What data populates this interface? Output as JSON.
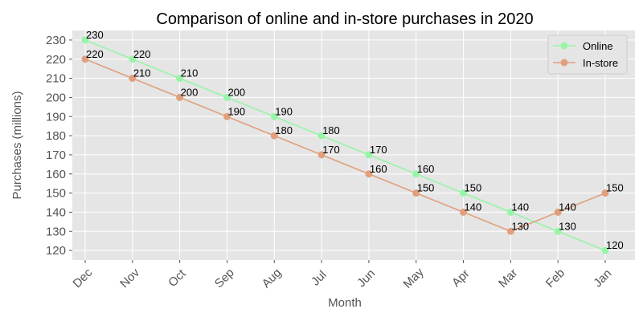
{
  "chart_data": {
    "type": "line",
    "title": "Comparison of online and in-store purchases in 2020",
    "xlabel": "Month",
    "ylabel": "Purchases (millions)",
    "categories": [
      "Dec",
      "Nov",
      "Oct",
      "Sep",
      "Aug",
      "Jul",
      "Jun",
      "May",
      "Apr",
      "Mar",
      "Feb",
      "Jan"
    ],
    "yticks": [
      120,
      130,
      140,
      150,
      160,
      170,
      180,
      190,
      200,
      210,
      220,
      230
    ],
    "ylim": [
      115,
      235
    ],
    "grid": true,
    "legend_position": "top-right",
    "series": [
      {
        "name": "Online",
        "color": "#98f5a8",
        "values": [
          230,
          220,
          210,
          200,
          190,
          180,
          170,
          160,
          150,
          140,
          130,
          120
        ]
      },
      {
        "name": "In-store",
        "color": "#e0a07e",
        "values": [
          220,
          210,
          200,
          190,
          180,
          170,
          160,
          150,
          140,
          130,
          140,
          150
        ]
      }
    ],
    "colors": {
      "plot_background": "#e5e5e5",
      "grid": "#ffffff"
    }
  }
}
